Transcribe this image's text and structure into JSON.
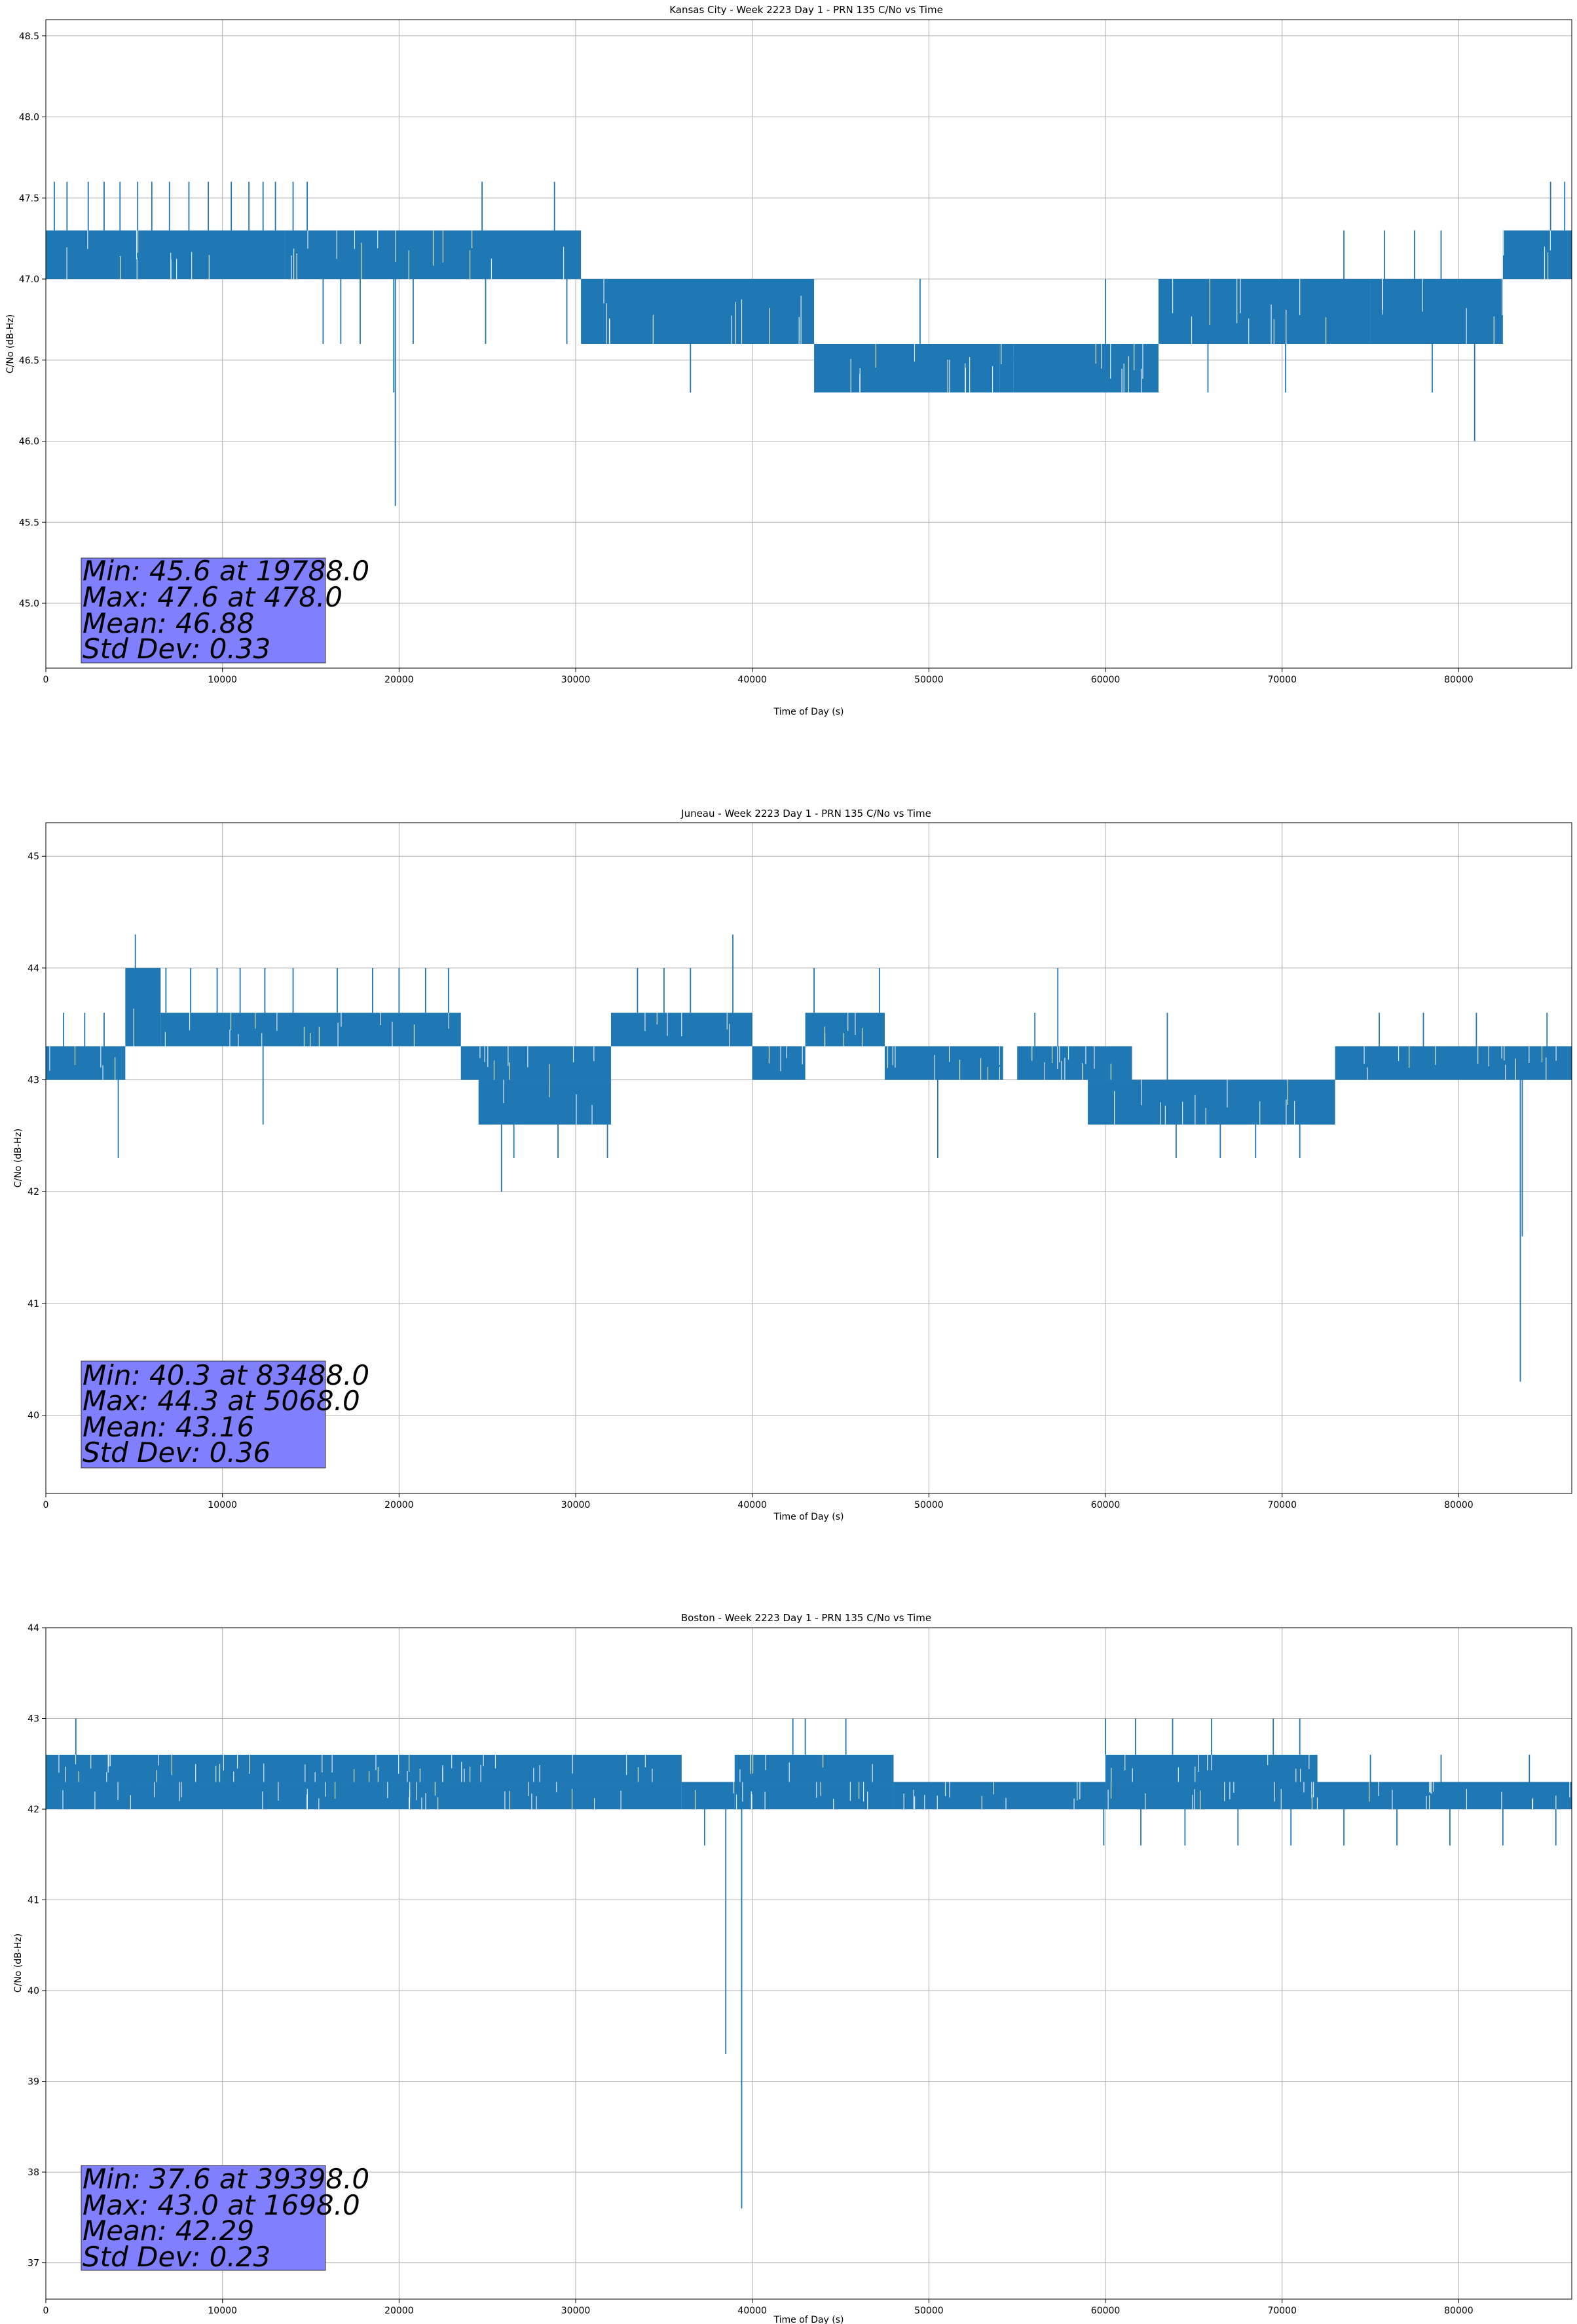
{
  "chart_data": [
    {
      "type": "line",
      "title": "Kansas City - Week 2223 Day 1 - PRN 135 C/No vs Time",
      "xlabel": "Time of Day (s)",
      "ylabel": "C/No (dB-Hz)",
      "xlim": [
        0,
        86400
      ],
      "ylim": [
        44.6,
        48.6
      ],
      "xticks": [
        0,
        10000,
        20000,
        30000,
        40000,
        50000,
        60000,
        70000,
        80000
      ],
      "yticks": [
        45.0,
        45.5,
        46.0,
        46.5,
        47.0,
        47.5,
        48.0,
        48.5
      ],
      "ytick_decimals": 1,
      "grid": true,
      "color": "#1f77b4",
      "stats": {
        "min": "Min: 45.6 at 19788.0",
        "max": "Max: 47.6 at 478.0",
        "mean": "Mean: 46.88",
        "std": "Std Dev: 0.33"
      },
      "bands": [
        {
          "x": [
            0,
            13500
          ],
          "low": 47.0,
          "high": 47.3
        },
        {
          "x": [
            13500,
            30300
          ],
          "low": 47.0,
          "high": 47.3
        },
        {
          "x": [
            30300,
            43500
          ],
          "low": 46.6,
          "high": 47.0
        },
        {
          "x": [
            43500,
            54000
          ],
          "low": 46.3,
          "high": 46.6
        },
        {
          "x": [
            54000,
            54800
          ],
          "low": 46.3,
          "high": 46.6
        },
        {
          "x": [
            54800,
            63000
          ],
          "low": 46.3,
          "high": 46.6
        },
        {
          "x": [
            63000,
            75000
          ],
          "low": 46.6,
          "high": 47.0
        },
        {
          "x": [
            75000,
            82500
          ],
          "low": 46.6,
          "high": 47.0
        },
        {
          "x": [
            82500,
            86400
          ],
          "low": 47.0,
          "high": 47.3
        }
      ],
      "spikes": [
        {
          "x": 478,
          "y": 47.6
        },
        {
          "x": 1200,
          "y": 47.6
        },
        {
          "x": 2400,
          "y": 47.6
        },
        {
          "x": 3300,
          "y": 47.6
        },
        {
          "x": 4200,
          "y": 47.6
        },
        {
          "x": 5200,
          "y": 47.6
        },
        {
          "x": 6000,
          "y": 47.6
        },
        {
          "x": 7000,
          "y": 47.6
        },
        {
          "x": 8100,
          "y": 47.6
        },
        {
          "x": 9200,
          "y": 47.6
        },
        {
          "x": 10500,
          "y": 47.6
        },
        {
          "x": 11500,
          "y": 47.6
        },
        {
          "x": 12300,
          "y": 47.6
        },
        {
          "x": 13000,
          "y": 47.6
        },
        {
          "x": 14000,
          "y": 47.6
        },
        {
          "x": 14800,
          "y": 47.6
        },
        {
          "x": 24700,
          "y": 47.6
        },
        {
          "x": 28800,
          "y": 47.6
        },
        {
          "x": 15700,
          "y": 46.6
        },
        {
          "x": 16700,
          "y": 46.6
        },
        {
          "x": 17800,
          "y": 46.6
        },
        {
          "x": 19788,
          "y": 45.6
        },
        {
          "x": 19700,
          "y": 46.3
        },
        {
          "x": 20800,
          "y": 46.6
        },
        {
          "x": 24900,
          "y": 46.6
        },
        {
          "x": 29500,
          "y": 46.6
        },
        {
          "x": 73500,
          "y": 47.3
        },
        {
          "x": 75800,
          "y": 47.3
        },
        {
          "x": 77500,
          "y": 47.3
        },
        {
          "x": 79000,
          "y": 47.3
        },
        {
          "x": 80900,
          "y": 46.0
        },
        {
          "x": 86000,
          "y": 47.6
        },
        {
          "x": 85200,
          "y": 47.6
        },
        {
          "x": 36500,
          "y": 46.3
        },
        {
          "x": 48000,
          "y": 46.3
        },
        {
          "x": 51200,
          "y": 46.3
        },
        {
          "x": 58000,
          "y": 46.3
        },
        {
          "x": 65800,
          "y": 46.3
        },
        {
          "x": 70200,
          "y": 46.3
        },
        {
          "x": 78500,
          "y": 46.3
        },
        {
          "x": 49500,
          "y": 47.0
        },
        {
          "x": 60000,
          "y": 47.0
        },
        {
          "x": 66200,
          "y": 47.0
        }
      ]
    },
    {
      "type": "line",
      "title": "Juneau - Week 2223 Day 1 - PRN 135 C/No vs Time",
      "xlabel": "Time of Day (s)",
      "ylabel": "C/No (dB-Hz)",
      "xlim": [
        0,
        86400
      ],
      "ylim": [
        39.3,
        45.3
      ],
      "xticks": [
        0,
        10000,
        20000,
        30000,
        40000,
        50000,
        60000,
        70000,
        80000
      ],
      "yticks": [
        40,
        41,
        42,
        43,
        44,
        45
      ],
      "ytick_decimals": 0,
      "grid": true,
      "color": "#1f77b4",
      "stats": {
        "min": "Min: 40.3 at 83488.0",
        "max": "Max: 44.3 at 5068.0",
        "mean": "Mean: 43.16",
        "std": "Std Dev: 0.36"
      },
      "bands": [
        {
          "x": [
            0,
            4500
          ],
          "low": 43.0,
          "high": 43.3
        },
        {
          "x": [
            4500,
            6500
          ],
          "low": 43.3,
          "high": 44.0
        },
        {
          "x": [
            6500,
            23500
          ],
          "low": 43.3,
          "high": 43.6
        },
        {
          "x": [
            23500,
            32000
          ],
          "low": 43.0,
          "high": 43.3
        },
        {
          "x": [
            24500,
            32000
          ],
          "low": 42.6,
          "high": 43.0
        },
        {
          "x": [
            32000,
            40000
          ],
          "low": 43.3,
          "high": 43.6
        },
        {
          "x": [
            40000,
            43000
          ],
          "low": 43.0,
          "high": 43.3
        },
        {
          "x": [
            43000,
            47500
          ],
          "low": 43.3,
          "high": 43.6
        },
        {
          "x": [
            47500,
            54200
          ],
          "low": 43.0,
          "high": 43.3
        },
        {
          "x": [
            55000,
            61500
          ],
          "low": 43.0,
          "high": 43.3
        },
        {
          "x": [
            59000,
            73000
          ],
          "low": 42.6,
          "high": 43.0
        },
        {
          "x": [
            73000,
            86400
          ],
          "low": 43.0,
          "high": 43.3
        }
      ],
      "spikes": [
        {
          "x": 1000,
          "y": 43.6
        },
        {
          "x": 2200,
          "y": 43.6
        },
        {
          "x": 3300,
          "y": 43.6
        },
        {
          "x": 5068,
          "y": 44.3
        },
        {
          "x": 6800,
          "y": 44.0
        },
        {
          "x": 8200,
          "y": 44.0
        },
        {
          "x": 9700,
          "y": 44.0
        },
        {
          "x": 11000,
          "y": 44.0
        },
        {
          "x": 12400,
          "y": 44.0
        },
        {
          "x": 14000,
          "y": 44.0
        },
        {
          "x": 16500,
          "y": 44.0
        },
        {
          "x": 18500,
          "y": 44.0
        },
        {
          "x": 20000,
          "y": 44.0
        },
        {
          "x": 21500,
          "y": 44.0
        },
        {
          "x": 22800,
          "y": 44.0
        },
        {
          "x": 33500,
          "y": 44.0
        },
        {
          "x": 35000,
          "y": 44.0
        },
        {
          "x": 36500,
          "y": 44.0
        },
        {
          "x": 38900,
          "y": 44.3
        },
        {
          "x": 43500,
          "y": 44.0
        },
        {
          "x": 47200,
          "y": 44.0
        },
        {
          "x": 57300,
          "y": 44.0
        },
        {
          "x": 56000,
          "y": 43.6
        },
        {
          "x": 63500,
          "y": 43.6
        },
        {
          "x": 75500,
          "y": 43.6
        },
        {
          "x": 78000,
          "y": 43.6
        },
        {
          "x": 81000,
          "y": 43.6
        },
        {
          "x": 85000,
          "y": 43.6
        },
        {
          "x": 4100,
          "y": 42.3
        },
        {
          "x": 12300,
          "y": 42.6
        },
        {
          "x": 25800,
          "y": 42.0
        },
        {
          "x": 26500,
          "y": 42.3
        },
        {
          "x": 29000,
          "y": 42.3
        },
        {
          "x": 31800,
          "y": 42.3
        },
        {
          "x": 50500,
          "y": 42.3
        },
        {
          "x": 54800,
          "y": 42.3
        },
        {
          "x": 64000,
          "y": 42.3
        },
        {
          "x": 66500,
          "y": 42.3
        },
        {
          "x": 68500,
          "y": 42.3
        },
        {
          "x": 71000,
          "y": 42.3
        },
        {
          "x": 83488,
          "y": 40.3
        },
        {
          "x": 83600,
          "y": 41.6
        }
      ]
    },
    {
      "type": "line",
      "title": "Boston - Week 2223 Day 1 - PRN 135 C/No vs Time",
      "xlabel": "Time of Day (s)",
      "ylabel": "C/No (dB-Hz)",
      "xlim": [
        0,
        86400
      ],
      "ylim": [
        36.6,
        44.0
      ],
      "xticks": [
        0,
        10000,
        20000,
        30000,
        40000,
        50000,
        60000,
        70000,
        80000
      ],
      "yticks": [
        37,
        38,
        39,
        40,
        41,
        42,
        43,
        44
      ],
      "ytick_decimals": 0,
      "grid": true,
      "color": "#1f77b4",
      "stats": {
        "min": "Min: 37.6 at 39398.0",
        "max": "Max: 43.0 at 1698.0",
        "mean": "Mean: 42.29",
        "std": "Std Dev: 0.23"
      },
      "bands": [
        {
          "x": [
            0,
            36000
          ],
          "low": 42.3,
          "high": 42.6
        },
        {
          "x": [
            0,
            36000
          ],
          "low": 42.0,
          "high": 42.3
        },
        {
          "x": [
            36000,
            39000
          ],
          "low": 42.0,
          "high": 42.3
        },
        {
          "x": [
            39000,
            48000
          ],
          "low": 42.3,
          "high": 42.6
        },
        {
          "x": [
            39000,
            48000
          ],
          "low": 42.0,
          "high": 42.3
        },
        {
          "x": [
            48000,
            60000
          ],
          "low": 42.0,
          "high": 42.3
        },
        {
          "x": [
            60000,
            72000
          ],
          "low": 42.3,
          "high": 42.6
        },
        {
          "x": [
            60000,
            86400
          ],
          "low": 42.0,
          "high": 42.3
        }
      ],
      "spikes": [
        {
          "x": 1698,
          "y": 43.0
        },
        {
          "x": 3200,
          "y": 42.6
        },
        {
          "x": 5000,
          "y": 42.6
        },
        {
          "x": 7000,
          "y": 42.6
        },
        {
          "x": 42300,
          "y": 43.0
        },
        {
          "x": 43000,
          "y": 43.0
        },
        {
          "x": 45300,
          "y": 43.0
        },
        {
          "x": 60000,
          "y": 43.0
        },
        {
          "x": 61700,
          "y": 43.0
        },
        {
          "x": 63800,
          "y": 43.0
        },
        {
          "x": 66000,
          "y": 43.0
        },
        {
          "x": 69500,
          "y": 43.0
        },
        {
          "x": 71000,
          "y": 43.0
        },
        {
          "x": 75000,
          "y": 42.6
        },
        {
          "x": 79000,
          "y": 42.6
        },
        {
          "x": 84000,
          "y": 42.6
        },
        {
          "x": 37300,
          "y": 41.6
        },
        {
          "x": 38500,
          "y": 39.3
        },
        {
          "x": 39398,
          "y": 37.6
        },
        {
          "x": 59900,
          "y": 41.6
        },
        {
          "x": 62000,
          "y": 41.6
        },
        {
          "x": 64500,
          "y": 41.6
        },
        {
          "x": 67500,
          "y": 41.6
        },
        {
          "x": 70500,
          "y": 41.6
        },
        {
          "x": 73500,
          "y": 41.6
        },
        {
          "x": 76500,
          "y": 41.6
        },
        {
          "x": 79500,
          "y": 41.6
        },
        {
          "x": 82500,
          "y": 41.6
        },
        {
          "x": 85500,
          "y": 41.6
        }
      ]
    }
  ]
}
